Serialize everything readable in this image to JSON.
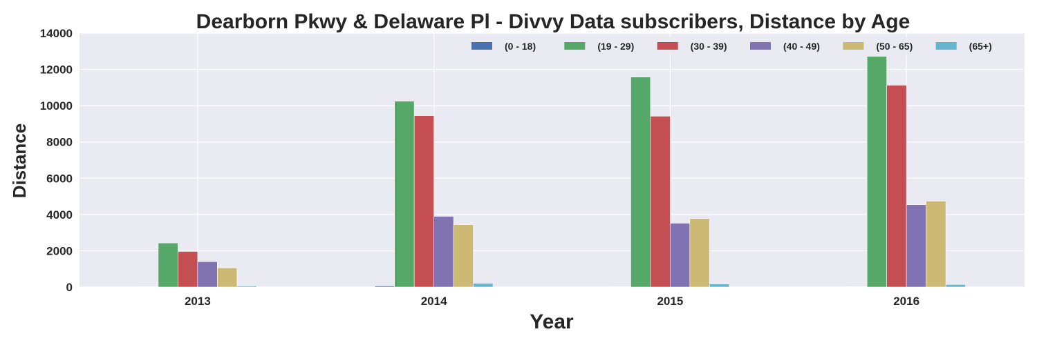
{
  "chart_data": {
    "type": "bar",
    "title": "Dearborn Pkwy & Delaware Pl - Divvy Data subscribers, Distance by Age",
    "xlabel": "Year",
    "ylabel": "Distance",
    "categories": [
      "2013",
      "2014",
      "2015",
      "2016"
    ],
    "ylim": [
      0,
      14000
    ],
    "yticks": [
      0,
      2000,
      4000,
      6000,
      8000,
      10000,
      12000,
      14000
    ],
    "grid": true,
    "legend_position": "top-right",
    "series": [
      {
        "name": "(0 - 18)",
        "color": "#4C72B0",
        "values": [
          20,
          60,
          20,
          20
        ]
      },
      {
        "name": "(19 - 29)",
        "color": "#55A868",
        "values": [
          2430,
          10250,
          11580,
          12720
        ]
      },
      {
        "name": "(30 - 39)",
        "color": "#C44E52",
        "values": [
          1960,
          9450,
          9420,
          11130
        ]
      },
      {
        "name": "(40 - 49)",
        "color": "#8172B2",
        "values": [
          1400,
          3900,
          3520,
          4540
        ]
      },
      {
        "name": "(50 - 65)",
        "color": "#CCB974",
        "values": [
          1060,
          3440,
          3780,
          4740
        ]
      },
      {
        "name": "(65+)",
        "color": "#64B5CD",
        "values": [
          60,
          210,
          170,
          140
        ]
      }
    ]
  }
}
